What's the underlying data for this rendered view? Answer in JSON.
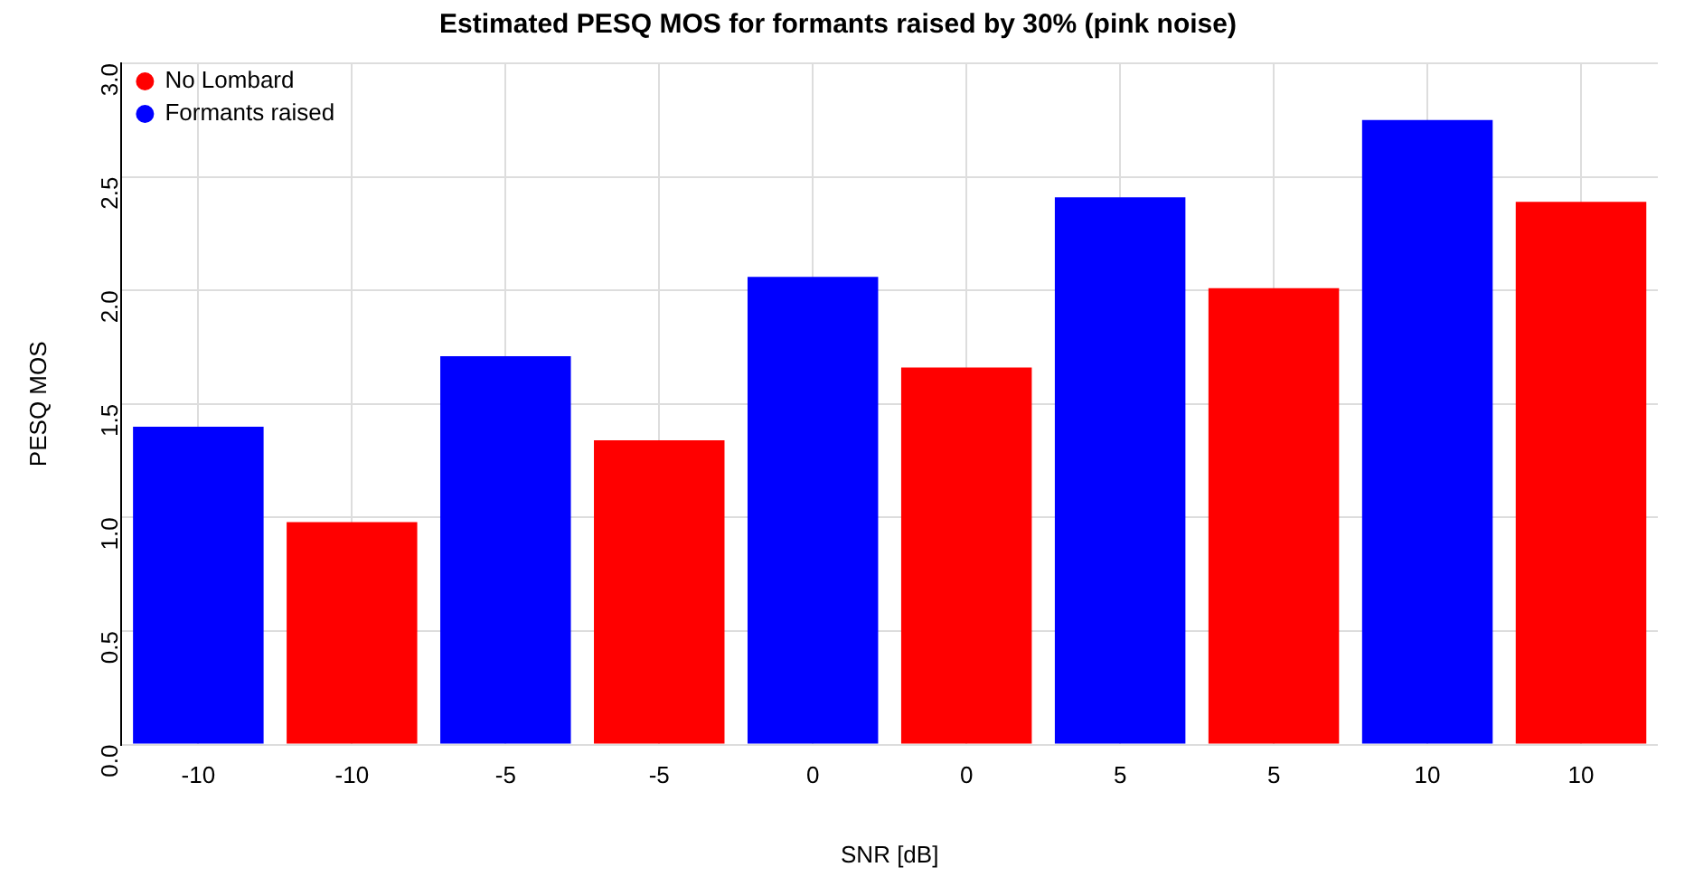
{
  "chart_data": {
    "type": "bar",
    "title": "Estimated PESQ MOS for formants raised by 30% (pink noise)",
    "xlabel": "SNR [dB]",
    "ylabel": "PESQ MOS",
    "categories": [
      "-10",
      "-10",
      "-5",
      "-5",
      "0",
      "0",
      "5",
      "5",
      "10",
      "10"
    ],
    "series": [
      {
        "name": "No Lombard",
        "color": "#ff0000",
        "values": [
          null,
          0.98,
          null,
          1.34,
          null,
          1.66,
          null,
          2.01,
          null,
          2.39
        ]
      },
      {
        "name": "Formants raised",
        "color": "#0000ff",
        "values": [
          1.4,
          null,
          1.71,
          null,
          2.06,
          null,
          2.41,
          null,
          2.75,
          null
        ]
      }
    ],
    "ylim": [
      0,
      3
    ],
    "yticks": [
      {
        "value": 0,
        "label": "0.0"
      },
      0.5,
      {
        "value": 1,
        "label": "1.0"
      },
      1.5,
      {
        "value": 2,
        "label": "2.0"
      },
      2.5,
      {
        "value": 3,
        "label": "3.0"
      }
    ],
    "grid": true,
    "legend": "top left"
  }
}
